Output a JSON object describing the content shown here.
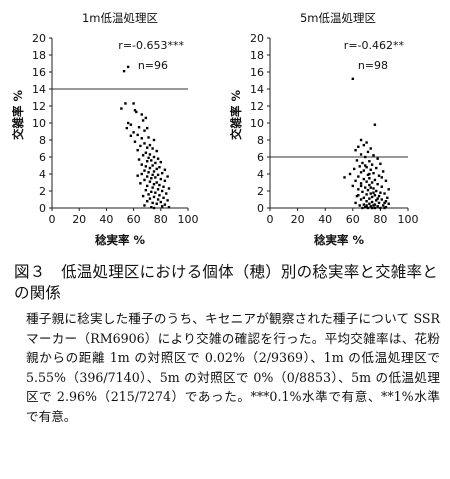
{
  "chart_data": [
    {
      "type": "scatter",
      "title": "1m低温処理区",
      "xlabel": "稔実率 %",
      "ylabel": "交雑率 %",
      "xlim": [
        0,
        100
      ],
      "ylim": [
        0,
        20
      ],
      "xticks": [
        0,
        20,
        40,
        60,
        80,
        100
      ],
      "yticks": [
        0,
        2,
        4,
        6,
        8,
        10,
        12,
        14,
        16,
        18,
        20
      ],
      "gridlines_y": [
        14
      ],
      "annotations": [
        "r=-0.653***",
        "n=96"
      ],
      "points": [
        [
          56,
          16.6
        ],
        [
          53,
          16.1
        ],
        [
          54,
          12.3
        ],
        [
          60,
          12.3
        ],
        [
          51,
          11.7
        ],
        [
          61,
          11.5
        ],
        [
          62,
          11.3
        ],
        [
          66,
          11.0
        ],
        [
          69,
          10.6
        ],
        [
          67,
          10.3
        ],
        [
          56,
          10.0
        ],
        [
          58,
          9.8
        ],
        [
          64,
          9.5
        ],
        [
          55,
          9.4
        ],
        [
          70,
          9.4
        ],
        [
          68,
          9.1
        ],
        [
          60,
          8.9
        ],
        [
          63,
          8.6
        ],
        [
          58,
          8.5
        ],
        [
          71,
          8.3
        ],
        [
          66,
          8.2
        ],
        [
          75,
          8.0
        ],
        [
          61,
          7.8
        ],
        [
          68,
          7.6
        ],
        [
          72,
          7.4
        ],
        [
          65,
          7.3
        ],
        [
          70,
          7.1
        ],
        [
          74,
          7.0
        ],
        [
          63,
          6.8
        ],
        [
          77,
          6.7
        ],
        [
          69,
          6.5
        ],
        [
          72,
          6.3
        ],
        [
          67,
          6.2
        ],
        [
          75,
          6.0
        ],
        [
          71,
          5.9
        ],
        [
          78,
          5.8
        ],
        [
          64,
          5.7
        ],
        [
          73,
          5.6
        ],
        [
          70,
          5.5
        ],
        [
          80,
          5.4
        ],
        [
          76,
          5.3
        ],
        [
          66,
          5.1
        ],
        [
          74,
          5.0
        ],
        [
          69,
          4.9
        ],
        [
          79,
          4.8
        ],
        [
          72,
          4.7
        ],
        [
          77,
          4.6
        ],
        [
          83,
          4.5
        ],
        [
          68,
          4.4
        ],
        [
          75,
          4.3
        ],
        [
          71,
          4.2
        ],
        [
          81,
          4.1
        ],
        [
          66,
          4.0
        ],
        [
          74,
          3.9
        ],
        [
          78,
          3.9
        ],
        [
          63,
          3.8
        ],
        [
          70,
          3.7
        ],
        [
          85,
          3.7
        ],
        [
          76,
          3.6
        ],
        [
          73,
          3.5
        ],
        [
          80,
          3.4
        ],
        [
          68,
          3.3
        ],
        [
          83,
          3.2
        ],
        [
          72,
          3.1
        ],
        [
          77,
          3.0
        ],
        [
          65,
          2.9
        ],
        [
          75,
          2.8
        ],
        [
          79,
          2.7
        ],
        [
          70,
          2.6
        ],
        [
          82,
          2.5
        ],
        [
          74,
          2.4
        ],
        [
          86,
          2.3
        ],
        [
          78,
          2.2
        ],
        [
          69,
          2.1
        ],
        [
          81,
          2.0
        ],
        [
          73,
          1.9
        ],
        [
          76,
          1.8
        ],
        [
          84,
          1.7
        ],
        [
          71,
          1.6
        ],
        [
          79,
          1.5
        ],
        [
          67,
          1.4
        ],
        [
          75,
          1.3
        ],
        [
          82,
          1.2
        ],
        [
          72,
          1.1
        ],
        [
          78,
          1.0
        ],
        [
          85,
          0.9
        ],
        [
          70,
          0.8
        ],
        [
          80,
          0.7
        ],
        [
          74,
          0.6
        ],
        [
          77,
          0.5
        ],
        [
          83,
          0.4
        ],
        [
          68,
          0.3
        ],
        [
          81,
          0.2
        ],
        [
          73,
          0.1
        ],
        [
          86,
          0.1
        ],
        [
          75,
          0.0
        ]
      ]
    },
    {
      "type": "scatter",
      "title": "5m低温処理区",
      "xlabel": "稔実率 %",
      "ylabel": "交雑率 %",
      "xlim": [
        0,
        100
      ],
      "ylim": [
        0,
        20
      ],
      "xticks": [
        0,
        20,
        40,
        60,
        80,
        100
      ],
      "yticks": [
        0,
        2,
        4,
        6,
        8,
        10,
        12,
        14,
        16,
        18,
        20
      ],
      "gridlines_y": [
        6
      ],
      "annotations": [
        "r=-0.462**",
        "n=98"
      ],
      "points": [
        [
          60,
          15.2
        ],
        [
          76,
          9.8
        ],
        [
          66,
          8.0
        ],
        [
          70,
          7.7
        ],
        [
          68,
          7.4
        ],
        [
          64,
          7.2
        ],
        [
          73,
          7.0
        ],
        [
          62,
          6.8
        ],
        [
          71,
          6.6
        ],
        [
          66,
          6.3
        ],
        [
          75,
          6.2
        ],
        [
          69,
          6.0
        ],
        [
          78,
          5.8
        ],
        [
          63,
          5.6
        ],
        [
          72,
          5.5
        ],
        [
          67,
          5.3
        ],
        [
          80,
          5.2
        ],
        [
          74,
          5.1
        ],
        [
          65,
          4.9
        ],
        [
          70,
          4.8
        ],
        [
          77,
          4.7
        ],
        [
          61,
          4.6
        ],
        [
          73,
          4.5
        ],
        [
          68,
          4.4
        ],
        [
          82,
          4.3
        ],
        [
          66,
          4.2
        ],
        [
          75,
          4.1
        ],
        [
          58,
          4.0
        ],
        [
          71,
          3.9
        ],
        [
          79,
          3.8
        ],
        [
          64,
          3.7
        ],
        [
          54,
          3.6
        ],
        [
          72,
          3.5
        ],
        [
          68,
          3.4
        ],
        [
          76,
          3.3
        ],
        [
          62,
          3.2
        ],
        [
          84,
          3.2
        ],
        [
          70,
          3.1
        ],
        [
          74,
          3.0
        ],
        [
          66,
          2.9
        ],
        [
          78,
          2.8
        ],
        [
          72,
          2.7
        ],
        [
          60,
          2.6
        ],
        [
          81,
          2.5
        ],
        [
          69,
          2.4
        ],
        [
          75,
          2.3
        ],
        [
          64,
          2.2
        ],
        [
          86,
          2.2
        ],
        [
          71,
          2.1
        ],
        [
          77,
          2.0
        ],
        [
          67,
          1.9
        ],
        [
          80,
          1.8
        ],
        [
          73,
          1.7
        ],
        [
          83,
          1.7
        ],
        [
          70,
          1.6
        ],
        [
          76,
          1.5
        ],
        [
          63,
          1.4
        ],
        [
          79,
          1.4
        ],
        [
          74,
          1.3
        ],
        [
          85,
          1.2
        ],
        [
          68,
          1.2
        ],
        [
          72,
          1.1
        ],
        [
          81,
          1.0
        ],
        [
          66,
          1.0
        ],
        [
          77,
          0.9
        ],
        [
          70,
          0.8
        ],
        [
          84,
          0.8
        ],
        [
          74,
          0.7
        ],
        [
          62,
          0.6
        ],
        [
          79,
          0.6
        ],
        [
          72,
          0.5
        ],
        [
          86,
          0.5
        ],
        [
          68,
          0.4
        ],
        [
          76,
          0.4
        ],
        [
          82,
          0.3
        ],
        [
          65,
          0.3
        ],
        [
          73,
          0.2
        ],
        [
          78,
          0.2
        ],
        [
          70,
          0.1
        ],
        [
          84,
          0.1
        ],
        [
          74,
          0.0
        ],
        [
          80,
          0.0
        ],
        [
          67,
          0.0
        ],
        [
          76,
          0.0
        ],
        [
          71,
          0.0
        ],
        [
          83,
          0.0
        ],
        [
          69,
          0.1
        ],
        [
          75,
          0.3
        ],
        [
          64,
          1.5
        ],
        [
          73,
          2.4
        ],
        [
          81,
          3.6
        ],
        [
          69,
          5.0
        ],
        [
          78,
          1.1
        ],
        [
          72,
          4.0
        ],
        [
          75,
          1.8
        ],
        [
          66,
          2.6
        ],
        [
          83,
          0.6
        ],
        [
          70,
          0.3
        ]
      ]
    }
  ],
  "caption": {
    "title": "図３　低温処理区における個体（穂）別の稔実率と交雑率との関係",
    "body": "種子親に稔実した種子のうち、キセニアが観察された種子について SSR マーカー（RM6906）により交雑の確認を行った。平均交雑率は、花粉親からの距離 1m の対照区で 0.02%（2/9369）、1m の低温処理区で 5.55%（396/7140）、5m の対照区で 0%（0/8853）、5m の低温処理区で 2.96%（215/7274）であった。***0.1%水準で有意、**1%水準で有意。"
  }
}
